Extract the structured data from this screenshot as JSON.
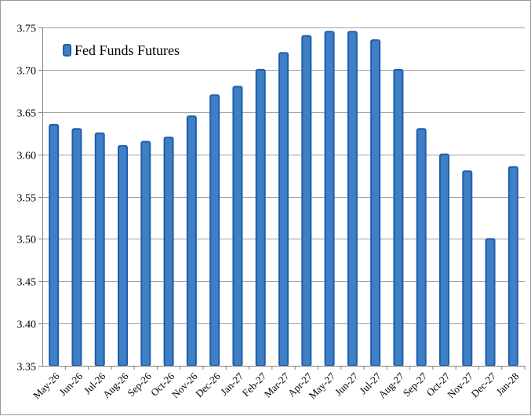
{
  "chart_data": {
    "type": "bar",
    "categories": [
      "May-26",
      "Jun-26",
      "Jul-26",
      "Aug-26",
      "Sep-26",
      "Oct-26",
      "Nov-26",
      "Dec-26",
      "Jan-27",
      "Feb-27",
      "Mar-27",
      "Apr-27",
      "May-27",
      "Jun-27",
      "Jul-27",
      "Aug-27",
      "Sep-27",
      "Oct-27",
      "Nov-27",
      "Dec-27",
      "Jan-28"
    ],
    "series": [
      {
        "name": "Fed Funds Futures",
        "values": [
          3.635,
          3.63,
          3.625,
          3.61,
          3.615,
          3.62,
          3.645,
          3.67,
          3.68,
          3.7,
          3.72,
          3.74,
          3.745,
          3.745,
          3.735,
          3.7,
          3.63,
          3.6,
          3.58,
          3.5,
          3.585
        ]
      }
    ],
    "y_ticks": [
      "3.35",
      "3.40",
      "3.45",
      "3.50",
      "3.55",
      "3.60",
      "3.65",
      "3.70",
      "3.75"
    ],
    "ylim": [
      3.35,
      3.75
    ],
    "grid": true,
    "legend_position": "top-left",
    "colors": {
      "bar_fill": "#3f7fc6",
      "bar_edge": "#1f5ea8",
      "grid": "#a0a0a0"
    }
  }
}
